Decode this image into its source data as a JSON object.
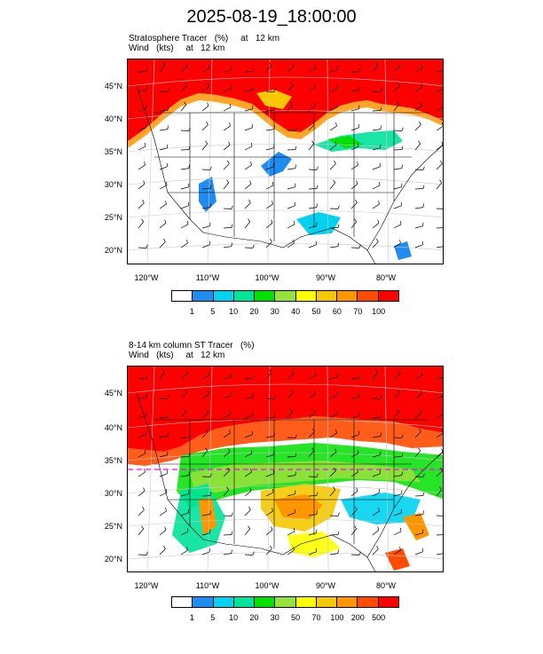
{
  "title": "2025-08-19_18:00:00",
  "colors": {
    "scale1": [
      "#ffffff",
      "#1e8cf0",
      "#00d2f0",
      "#00e39a",
      "#00e100",
      "#96e13c",
      "#ffff00",
      "#f5c800",
      "#ff9600",
      "#ff4b00",
      "#ff0000"
    ],
    "scale2": [
      "#ffffff",
      "#1e8cf0",
      "#00d2f0",
      "#00e39a",
      "#00e100",
      "#96e13c",
      "#ffff00",
      "#f5c800",
      "#ff9600",
      "#ff4b00",
      "#ff0000"
    ],
    "magenta_line": "#ff00ff"
  },
  "panel1": {
    "title_line1": "Stratosphere Tracer   (%)     at   12 km",
    "title_line2": "Wind   (kts)     at   12 km",
    "lat_labels": [
      "45°N",
      "40°N",
      "35°N",
      "30°N",
      "25°N",
      "20°N"
    ],
    "lon_labels": [
      "120°W",
      "110°W",
      "100°W",
      "90°W",
      "80°W"
    ],
    "colorbar_labels": [
      "1",
      "5",
      "10",
      "20",
      "30",
      "40",
      "50",
      "60",
      "70",
      "100"
    ]
  },
  "panel2": {
    "title_line1": "8-14 km column ST Tracer   (%)",
    "title_line2": "Wind   (kts)     at   12 km",
    "lat_labels": [
      "45°N",
      "40°N",
      "35°N",
      "30°N",
      "25°N",
      "20°N"
    ],
    "lon_labels": [
      "120°W",
      "110°W",
      "100°W",
      "90°W",
      "80°W"
    ],
    "colorbar_labels": [
      "1",
      "5",
      "10",
      "20",
      "30",
      "50",
      "70",
      "100",
      "200",
      "500"
    ]
  }
}
